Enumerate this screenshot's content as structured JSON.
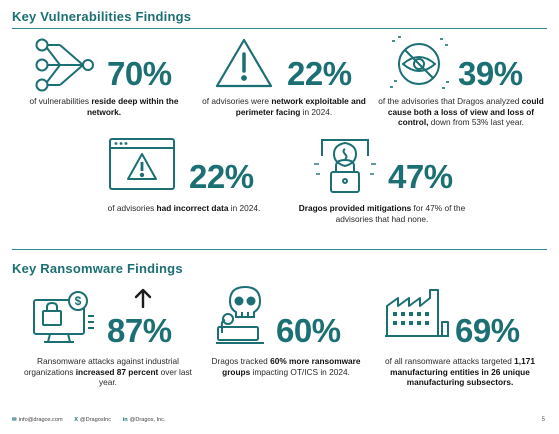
{
  "vulnerabilities": {
    "title": "Key Vulnerabilities Findings",
    "stats": [
      {
        "value": "70%",
        "parts": [
          [
            "of vulnerabilities ",
            false
          ],
          [
            "reside deep within the network.",
            true
          ]
        ]
      },
      {
        "value": "22%",
        "parts": [
          [
            "of advisories were ",
            false
          ],
          [
            "network exploitable and perimeter facing",
            true
          ],
          [
            " in 2024.",
            false
          ]
        ]
      },
      {
        "value": "39%",
        "parts": [
          [
            "of the advisories that Dragos analyzed ",
            false
          ],
          [
            "could cause both a loss of view and loss of control,",
            true
          ],
          [
            " down from 53% last year.",
            false
          ]
        ]
      },
      {
        "value": "22%",
        "parts": [
          [
            "of advisories ",
            false
          ],
          [
            "had incorrect data",
            true
          ],
          [
            " in 2024.",
            false
          ]
        ]
      },
      {
        "value": "47%",
        "parts": [
          [
            "Dragos provided mitigations",
            true
          ],
          [
            " for 47% of the advisories that had none.",
            false
          ]
        ]
      }
    ]
  },
  "ransomware": {
    "title": "Key Ransomware Findings",
    "stats": [
      {
        "value": "87%",
        "parts": [
          [
            "Ransomware attacks against industrial organizations ",
            false
          ],
          [
            "increased 87 percent",
            true
          ],
          [
            " over last year.",
            false
          ]
        ]
      },
      {
        "value": "60%",
        "parts": [
          [
            "Dragos tracked ",
            false
          ],
          [
            "60% more ransomware groups",
            true
          ],
          [
            " impacting OT/ICS in 2024.",
            false
          ]
        ]
      },
      {
        "value": "69%",
        "parts": [
          [
            "of all ransomware attacks targeted ",
            false
          ],
          [
            "1,171 manufacturing entities in 26 unique manufacturing subsectors.",
            true
          ]
        ]
      }
    ]
  },
  "footer": {
    "email": "info@dragos.com",
    "x_handle": "@DragosInc",
    "linkedin": "@Dragos, Inc.",
    "page": "5"
  },
  "colors": {
    "accent": "#1c6f73",
    "rule": "#2e8b8f"
  }
}
